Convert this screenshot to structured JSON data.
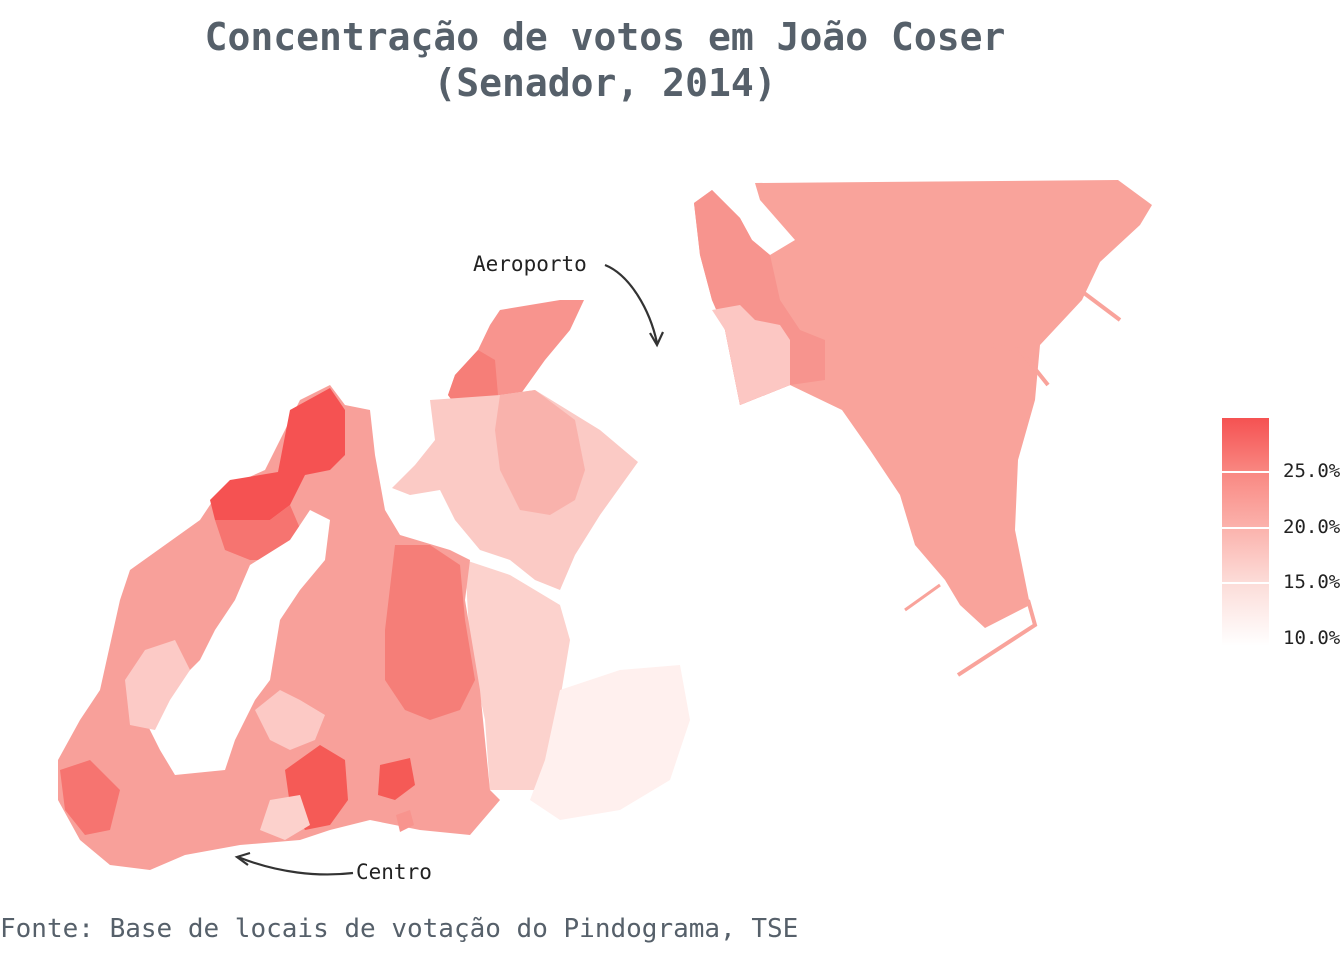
{
  "title_line1": "Concentração de votos em João Coser",
  "title_line2": "(Senador, 2014)",
  "legend": {
    "labels": [
      "25.0%",
      "20.0%",
      "15.0%",
      "10.0%"
    ],
    "colors": {
      "low": "#ffffff",
      "high": "#f55252"
    }
  },
  "annotations": {
    "airport": "Aeroporto",
    "centro": "Centro"
  },
  "source": "Fonte: Base de locais de votação do Pindograma, TSE"
}
